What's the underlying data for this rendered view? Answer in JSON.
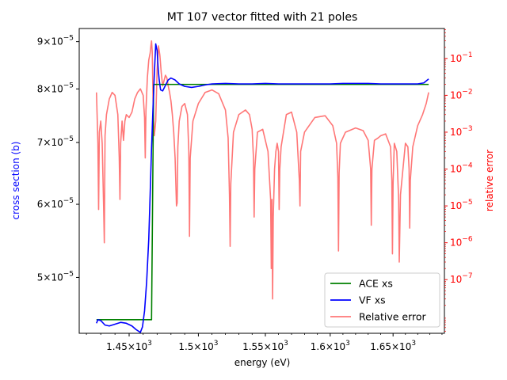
{
  "chart_data": {
    "type": "line",
    "title": "MT 107 vector fitted with 21 poles",
    "xlabel": "energy (eV)",
    "ylabel_left": "cross section (b)",
    "ylabel_right": "relative error",
    "xlim": [
      1415,
      1692
    ],
    "ylim_left": [
      4.35e-05,
      9.3e-05
    ],
    "ylim_right": [
      3.5e-09,
      0.65
    ],
    "yscale_left": "log",
    "yscale_right": "log",
    "xscale": "log",
    "x_ticks": [
      {
        "value": 1450,
        "base": "1.45×10",
        "exp": "3"
      },
      {
        "value": 1500,
        "base": "1.5×10",
        "exp": "3"
      },
      {
        "value": 1550,
        "base": "1.55×10",
        "exp": "3"
      },
      {
        "value": 1600,
        "base": "1.6×10",
        "exp": "3"
      },
      {
        "value": 1650,
        "base": "1.65×10",
        "exp": "3"
      }
    ],
    "y_left_ticks": [
      {
        "value": 5e-05,
        "base": "5×10",
        "exp": "−5"
      },
      {
        "value": 6e-05,
        "base": "6×10",
        "exp": "−5"
      },
      {
        "value": 7e-05,
        "base": "7×10",
        "exp": "−5"
      },
      {
        "value": 8e-05,
        "base": "8×10",
        "exp": "−5"
      },
      {
        "value": 9e-05,
        "base": "9×10",
        "exp": "−5"
      }
    ],
    "y_right_ticks": [
      {
        "value": 1e-07,
        "base": "10",
        "exp": "−7"
      },
      {
        "value": 1e-06,
        "base": "10",
        "exp": "−6"
      },
      {
        "value": 1e-05,
        "base": "10",
        "exp": "−5"
      },
      {
        "value": 0.0001,
        "base": "10",
        "exp": "−4"
      },
      {
        "value": 0.001,
        "base": "10",
        "exp": "−3"
      },
      {
        "value": 0.01,
        "base": "10",
        "exp": "−2"
      },
      {
        "value": 0.1,
        "base": "10",
        "exp": "−1"
      }
    ],
    "legend_position": "lower right",
    "series": [
      {
        "name": "ACE xs",
        "color": "#008000",
        "axis": "left",
        "x": [
          1427,
          1466,
          1466,
          1467.5,
          1467.5,
          1679
        ],
        "y": [
          4.5e-05,
          4.5e-05,
          4.5e-05,
          8.09e-05,
          8.09e-05,
          8.09e-05
        ]
      },
      {
        "name": "VF xs",
        "color": "#0000ff",
        "axis": "left",
        "x": [
          1427,
          1428,
          1430,
          1433,
          1436,
          1440,
          1444,
          1448,
          1452,
          1455,
          1458,
          1459.5,
          1461,
          1462.5,
          1464,
          1465,
          1466,
          1467,
          1468,
          1469,
          1470,
          1470.8,
          1471.5,
          1472.5,
          1474,
          1476,
          1478,
          1480,
          1483,
          1486,
          1490,
          1495,
          1500,
          1505,
          1510,
          1520,
          1530,
          1540,
          1550,
          1560,
          1570,
          1580,
          1590,
          1600,
          1610,
          1620,
          1630,
          1640,
          1650,
          1660,
          1670,
          1675,
          1677,
          1679
        ],
        "y": [
          4.46e-05,
          4.5e-05,
          4.49e-05,
          4.44e-05,
          4.43e-05,
          4.45e-05,
          4.47e-05,
          4.46e-05,
          4.43e-05,
          4.39e-05,
          4.36e-05,
          4.42e-05,
          4.6e-05,
          4.95e-05,
          5.5e-05,
          6.15e-05,
          6.9e-05,
          7.6e-05,
          8.3e-05,
          8.95e-05,
          8.8e-05,
          8.4e-05,
          8.18e-05,
          7.98e-05,
          7.96e-05,
          8.07e-05,
          8.18e-05,
          8.22e-05,
          8.18e-05,
          8.1e-05,
          8.05e-05,
          8.03e-05,
          8.05e-05,
          8.08e-05,
          8.1e-05,
          8.11e-05,
          8.1e-05,
          8.1e-05,
          8.11e-05,
          8.1e-05,
          8.1e-05,
          8.1e-05,
          8.1e-05,
          8.1e-05,
          8.11e-05,
          8.11e-05,
          8.11e-05,
          8.1e-05,
          8.1e-05,
          8.1e-05,
          8.1e-05,
          8.12e-05,
          8.16e-05,
          8.2e-05
        ]
      },
      {
        "name": "Relative error",
        "color": "#ff7777",
        "axis": "right",
        "x": [
          1427,
          1428,
          1428.5,
          1429,
          1430,
          1431,
          1432,
          1432.5,
          1433,
          1434,
          1436,
          1438,
          1440,
          1442,
          1443,
          1443.5,
          1444,
          1445,
          1446,
          1447,
          1448,
          1450,
          1452,
          1454,
          1456,
          1458,
          1460,
          1461,
          1461.5,
          1462,
          1463,
          1464,
          1465,
          1465.7,
          1466,
          1466.5,
          1467,
          1467.5,
          1468,
          1469,
          1470,
          1471,
          1472,
          1473,
          1474,
          1475,
          1476,
          1477,
          1478,
          1479,
          1480,
          1481,
          1482,
          1483,
          1484,
          1484.5,
          1485,
          1486,
          1488,
          1490,
          1492,
          1493,
          1493.5,
          1494,
          1496,
          1500,
          1505,
          1510,
          1515,
          1520,
          1522,
          1523,
          1523.5,
          1524,
          1526,
          1530,
          1535,
          1538,
          1540,
          1541,
          1541.5,
          1542,
          1544,
          1548,
          1552,
          1554,
          1554.5,
          1555,
          1555.5,
          1556,
          1557,
          1558,
          1559,
          1560,
          1560.5,
          1561,
          1562,
          1566,
          1570,
          1574,
          1576,
          1576.5,
          1577,
          1580,
          1588,
          1596,
          1602,
          1605,
          1606,
          1606.5,
          1607,
          1608,
          1612,
          1620,
          1626,
          1630,
          1632,
          1632.5,
          1633,
          1635,
          1638,
          1640,
          1644,
          1648,
          1649,
          1649.5,
          1650,
          1651,
          1653,
          1654.5,
          1655,
          1656,
          1660,
          1662,
          1663,
          1663.5,
          1664,
          1666,
          1670,
          1674,
          1677,
          1679
        ],
        "y": [
          0.012,
          0.0005,
          8e-06,
          0.001,
          0.002,
          0.0005,
          1e-05,
          1e-06,
          0.0008,
          0.003,
          0.008,
          0.012,
          0.01,
          0.003,
          0.0002,
          1.5e-05,
          0.0005,
          0.002,
          0.0006,
          0.002,
          0.003,
          0.0025,
          0.0035,
          0.008,
          0.012,
          0.015,
          0.01,
          0.0025,
          0.0002,
          0.004,
          0.03,
          0.09,
          0.14,
          0.25,
          0.3,
          0.15,
          0.01,
          0.002,
          0.0008,
          0.002,
          0.05,
          0.22,
          0.12,
          0.04,
          0.018,
          0.025,
          0.035,
          0.03,
          0.018,
          0.012,
          0.007,
          0.003,
          0.001,
          0.0002,
          1e-05,
          1.2e-05,
          0.0004,
          0.002,
          0.005,
          0.006,
          0.003,
          0.0003,
          1.5e-06,
          0.0002,
          0.002,
          0.006,
          0.012,
          0.014,
          0.011,
          0.004,
          0.0007,
          2e-05,
          8e-07,
          4e-05,
          0.001,
          0.003,
          0.004,
          0.003,
          0.0012,
          0.0002,
          5e-06,
          0.0001,
          0.001,
          0.0012,
          0.0003,
          1.5e-05,
          2e-07,
          1.5e-05,
          3e-08,
          5e-06,
          0.0001,
          0.0003,
          0.0005,
          0.0003,
          8e-06,
          0.0001,
          0.0004,
          0.003,
          0.0035,
          0.001,
          5e-05,
          1e-05,
          0.0003,
          0.001,
          0.0025,
          0.0028,
          0.0015,
          0.0005,
          6e-05,
          6e-07,
          8e-05,
          0.0005,
          0.001,
          0.0013,
          0.0011,
          0.0006,
          0.0001,
          3e-06,
          0.0001,
          0.0006,
          0.0007,
          0.0008,
          0.0009,
          0.0004,
          5e-05,
          5e-07,
          4e-05,
          0.0005,
          0.0003,
          1.5e-05,
          3e-07,
          2e-05,
          0.0005,
          0.0004,
          0.0001,
          2.5e-06,
          5e-05,
          0.0004,
          0.0015,
          0.003,
          0.006,
          0.012
        ]
      }
    ]
  }
}
